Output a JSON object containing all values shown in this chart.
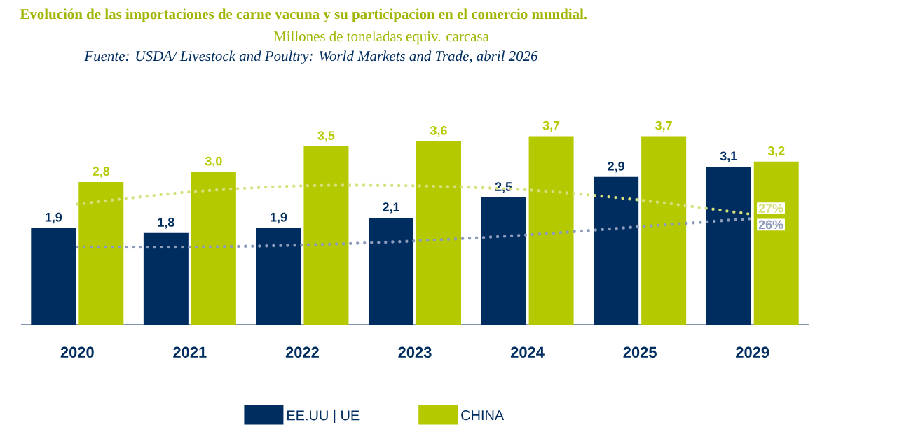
{
  "chart_data": {
    "type": "bar",
    "title": "Evolución de las importaciones de carne vacuna y su participacion en el comercio mundial.",
    "subtitle": "Millones de toneladas equiv. carcasa",
    "annotations": [
      "Fuente: USDA/ Livestock and Poultry: World Markets and Trade, abril 2026"
    ],
    "categories": [
      "2020",
      "2021",
      "2022",
      "2023",
      "2024",
      "2025",
      "2029"
    ],
    "series": [
      {
        "name": "EE.UU | UE",
        "color": "#002d5f",
        "values": [
          1.9,
          1.8,
          1.9,
          2.1,
          2.5,
          2.9,
          3.1
        ],
        "value_labels": [
          "1,9",
          "1,8",
          "1,9",
          "2,1",
          "2,5",
          "2,9",
          "3,1"
        ]
      },
      {
        "name": "CHINA",
        "color": "#b5c900",
        "values": [
          2.8,
          3.0,
          3.5,
          3.6,
          3.7,
          3.7,
          3.2
        ],
        "value_labels": [
          "2,8",
          "3,0",
          "3,5",
          "3,6",
          "3,7",
          "3,7",
          "3,2"
        ]
      },
      {
        "type": "line",
        "axis": "y2",
        "color": "#d6e07c",
        "line_style": "dotted",
        "values": [
          29.5,
          32.5,
          34,
          34,
          33,
          30.5,
          27
        ],
        "value_labels": [
          null,
          null,
          null,
          null,
          null,
          null,
          "27%"
        ]
      },
      {
        "type": "line",
        "axis": "y2",
        "color": "#8d9bbb",
        "line_style": "dotted",
        "values": [
          19,
          19,
          19.5,
          20.5,
          22,
          24,
          26
        ],
        "value_labels": [
          null,
          null,
          null,
          null,
          null,
          null,
          "26%"
        ]
      }
    ],
    "legend": "bottom",
    "tick_labels": "x"
  }
}
